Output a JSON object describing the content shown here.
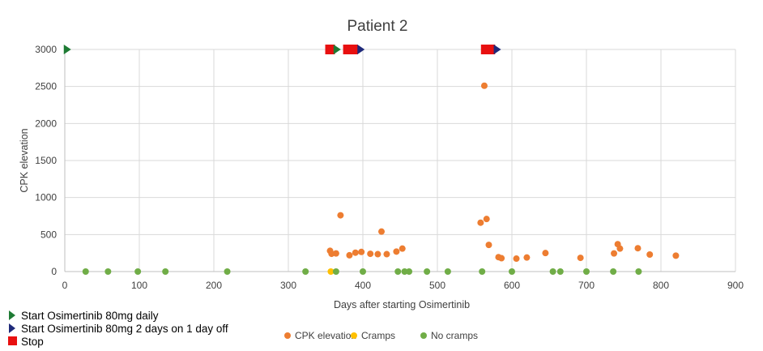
{
  "chart_data": {
    "type": "scatter",
    "title": "Patient 2",
    "xlabel": "Days after starting Osimertinib",
    "ylabel": "CPK elevation",
    "xlim": [
      0,
      900
    ],
    "ylim": [
      0,
      3000
    ],
    "x_ticks": [
      0,
      100,
      200,
      300,
      400,
      500,
      600,
      700,
      800,
      900
    ],
    "y_ticks": [
      0,
      500,
      1000,
      1500,
      2000,
      2500,
      3000
    ],
    "grid": true,
    "series": [
      {
        "name": "CPK elevation",
        "color": "#ED7D31",
        "points": [
          [
            356,
            280
          ],
          [
            358,
            240
          ],
          [
            364,
            245
          ],
          [
            370,
            760
          ],
          [
            382,
            220
          ],
          [
            390,
            255
          ],
          [
            398,
            265
          ],
          [
            410,
            240
          ],
          [
            420,
            235
          ],
          [
            425,
            540
          ],
          [
            432,
            235
          ],
          [
            445,
            270
          ],
          [
            453,
            310
          ],
          [
            558,
            660
          ],
          [
            563,
            2510
          ],
          [
            566,
            710
          ],
          [
            569,
            360
          ],
          [
            582,
            195
          ],
          [
            586,
            180
          ],
          [
            606,
            175
          ],
          [
            620,
            190
          ],
          [
            645,
            250
          ],
          [
            692,
            185
          ],
          [
            737,
            245
          ],
          [
            742,
            370
          ],
          [
            745,
            310
          ],
          [
            769,
            315
          ],
          [
            785,
            230
          ],
          [
            820,
            215
          ]
        ]
      },
      {
        "name": "Cramps",
        "color": "#FFC000",
        "points": [
          [
            357,
            0
          ]
        ]
      },
      {
        "name": "No cramps",
        "color": "#70AD47",
        "points": [
          [
            28,
            0
          ],
          [
            58,
            0
          ],
          [
            98,
            0
          ],
          [
            135,
            0
          ],
          [
            218,
            0
          ],
          [
            323,
            0
          ],
          [
            364,
            0
          ],
          [
            400,
            0
          ],
          [
            447,
            0
          ],
          [
            456,
            0
          ],
          [
            462,
            0
          ],
          [
            486,
            0
          ],
          [
            514,
            0
          ],
          [
            560,
            0
          ],
          [
            600,
            0
          ],
          [
            655,
            0
          ],
          [
            665,
            0
          ],
          [
            700,
            0
          ],
          [
            736,
            0
          ],
          [
            770,
            0
          ]
        ]
      }
    ],
    "event_markers": [
      {
        "type": "start_daily",
        "x": 3,
        "y": 3000
      },
      {
        "type": "stop",
        "x": 356,
        "y": 3000
      },
      {
        "type": "start_daily",
        "x": 365,
        "y": 3000
      },
      {
        "type": "stop",
        "x": 380,
        "y": 3000
      },
      {
        "type": "stop",
        "x": 387,
        "y": 3000
      },
      {
        "type": "start_intermittent",
        "x": 397,
        "y": 3000
      },
      {
        "type": "stop",
        "x": 565,
        "y": 3000
      },
      {
        "type": "stop",
        "x": 571,
        "y": 3000
      },
      {
        "type": "start_intermittent",
        "x": 580,
        "y": 3000
      }
    ],
    "series_legend": [
      "CPK elevation",
      "Cramps",
      "No cramps"
    ],
    "marker_legend": [
      {
        "type": "start_daily",
        "label": "Start Osimertinib 80mg daily",
        "color": "#1E7B34"
      },
      {
        "type": "start_intermittent",
        "label": "Start Osimertinib 80mg 2 days on 1 day off",
        "color": "#1F2A7A"
      },
      {
        "type": "stop",
        "label": "Stop",
        "color": "#E81010"
      }
    ]
  }
}
